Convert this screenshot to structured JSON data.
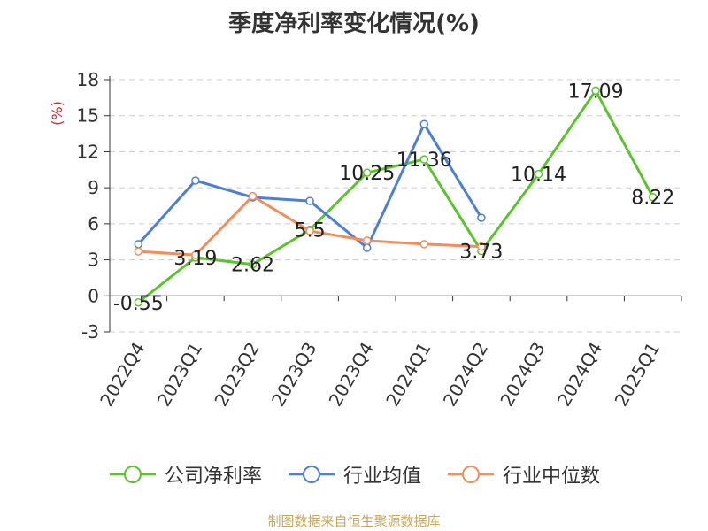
{
  "title": "季度净利率变化情况(%)",
  "source": "制图数据来自恒生聚源数据库",
  "chart_data": {
    "type": "line",
    "title": "季度净利率变化情况(%)",
    "ylabel": "(%)",
    "ylim": [
      -3,
      18
    ],
    "yticks": [
      -3,
      0,
      3,
      6,
      9,
      12,
      15,
      18
    ],
    "grid": true,
    "legend_position": "bottom",
    "categories": [
      "2022Q4",
      "2023Q1",
      "2023Q2",
      "2023Q3",
      "2023Q4",
      "2024Q1",
      "2024Q2",
      "2024Q3",
      "2024Q4",
      "2025Q1"
    ],
    "series": [
      {
        "name": "公司净利率",
        "color": "#5ac42c",
        "values": [
          -0.55,
          3.19,
          2.62,
          5.5,
          10.25,
          11.36,
          3.73,
          10.14,
          17.09,
          8.22
        ],
        "labels": [
          "-0.55",
          "3.19",
          "2.62",
          "5.5",
          "10.25",
          "11.36",
          "3.73",
          "10.14",
          "17.09",
          "8.22"
        ]
      },
      {
        "name": "行业均值",
        "color": "#4c7fd8",
        "values": [
          4.3,
          9.6,
          8.2,
          7.9,
          4.0,
          14.3,
          6.5,
          null,
          null,
          null
        ]
      },
      {
        "name": "行业中位数",
        "color": "#f58c5a",
        "values": [
          3.7,
          3.4,
          8.3,
          5.4,
          4.6,
          4.3,
          4.1,
          null,
          null,
          null
        ]
      }
    ]
  }
}
